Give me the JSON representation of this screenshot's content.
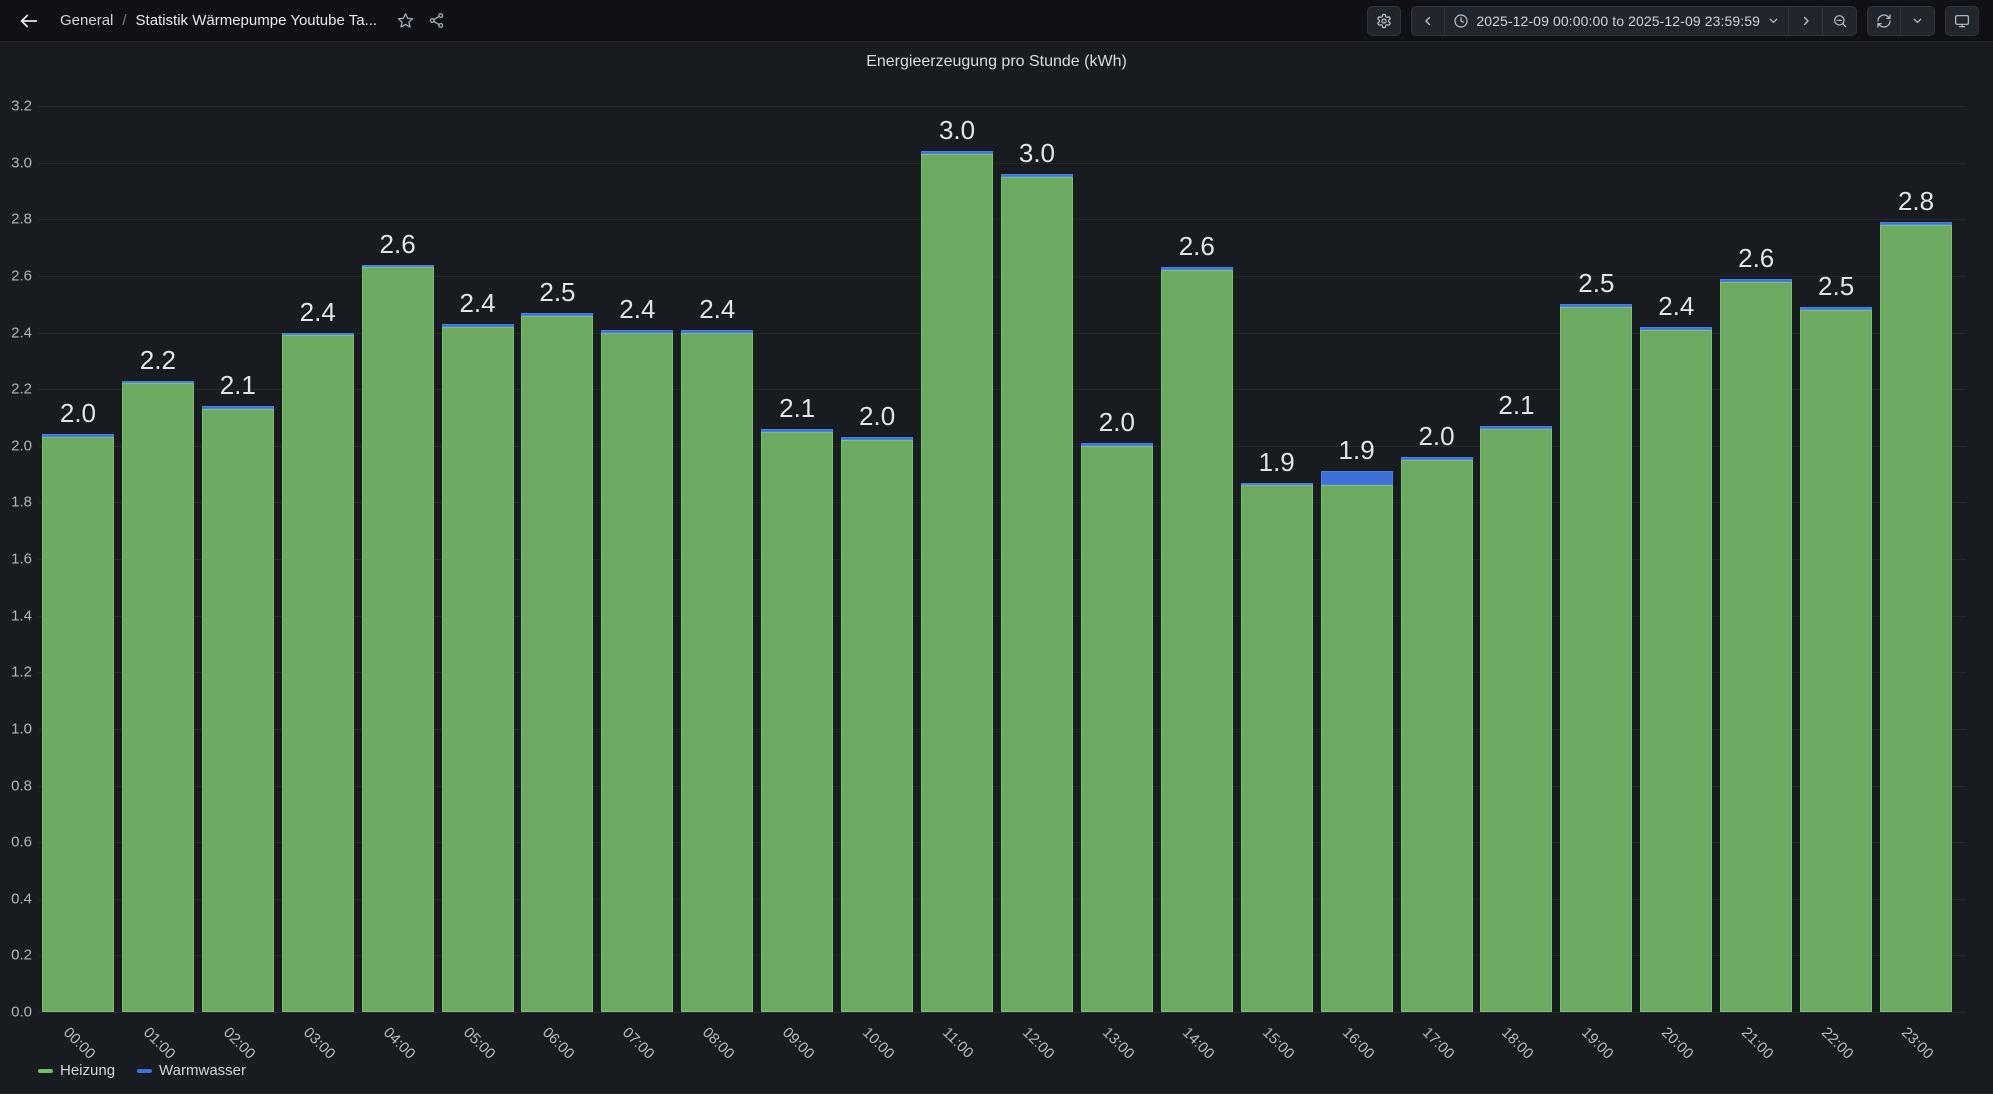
{
  "topnav": {
    "back_icon": "arrow-left-icon",
    "breadcrumb": {
      "section": "General",
      "separator": "/",
      "dashboard_title": "Statistik Wärmepumpe Youtube Ta..."
    },
    "actions": [
      "star-icon",
      "share-icon"
    ],
    "settings_icon": "gear-icon",
    "time_picker": {
      "range_label": "2025-12-09 00:00:00 to 2025-12-09 23:59:59",
      "icons": [
        "chevron-left-icon",
        "clock-icon",
        "chevron-down-icon",
        "chevron-right-icon",
        "zoom-out-icon"
      ]
    },
    "refresh": {
      "icons": [
        "refresh-icon",
        "chevron-down-icon"
      ]
    },
    "kiosk_icon": "monitor-icon"
  },
  "panel": {
    "title": "Energieerzeugung pro Stunde (kWh)"
  },
  "chart_data": {
    "type": "bar",
    "stacked": true,
    "title": "Energieerzeugung pro Stunde (kWh)",
    "categories": [
      "00:00",
      "01:00",
      "02:00",
      "03:00",
      "04:00",
      "05:00",
      "06:00",
      "07:00",
      "08:00",
      "09:00",
      "10:00",
      "11:00",
      "12:00",
      "13:00",
      "14:00",
      "15:00",
      "16:00",
      "17:00",
      "18:00",
      "19:00",
      "20:00",
      "21:00",
      "22:00",
      "23:00"
    ],
    "series": [
      {
        "name": "Heizung",
        "color": "#73bf69",
        "values": [
          2.03,
          2.22,
          2.13,
          2.39,
          2.63,
          2.42,
          2.46,
          2.4,
          2.4,
          2.05,
          2.02,
          3.03,
          2.95,
          2.0,
          2.62,
          1.86,
          1.86,
          1.95,
          2.06,
          2.49,
          2.41,
          2.58,
          2.48,
          2.78
        ]
      },
      {
        "name": "Warmwasser",
        "color": "#3d71d9",
        "values": [
          0.01,
          0.01,
          0.01,
          0.01,
          0.01,
          0.01,
          0.01,
          0.01,
          0.01,
          0.01,
          0.01,
          0.01,
          0.01,
          0.01,
          0.01,
          0.01,
          0.05,
          0.01,
          0.01,
          0.01,
          0.01,
          0.01,
          0.01,
          0.01
        ]
      }
    ],
    "bar_labels": [
      "2.0",
      "2.2",
      "2.1",
      "2.4",
      "2.6",
      "2.4",
      "2.5",
      "2.4",
      "2.4",
      "2.1",
      "2.0",
      "3.0",
      "3.0",
      "2.0",
      "2.6",
      "1.9",
      "1.9",
      "2.0",
      "2.1",
      "2.5",
      "2.4",
      "2.6",
      "2.5",
      "2.8"
    ],
    "xlabel": "",
    "ylabel": "",
    "ylim": [
      0,
      3.2
    ],
    "y_tick_step": 0.2,
    "grid": true,
    "legend_position": "bottom-left"
  },
  "colors": {
    "page_bg": "#111217",
    "panel_bg": "#181b1f",
    "heizung_green": "#73bf69",
    "warmwasser_blue": "#3d71d9",
    "text": "#ccccdc"
  }
}
